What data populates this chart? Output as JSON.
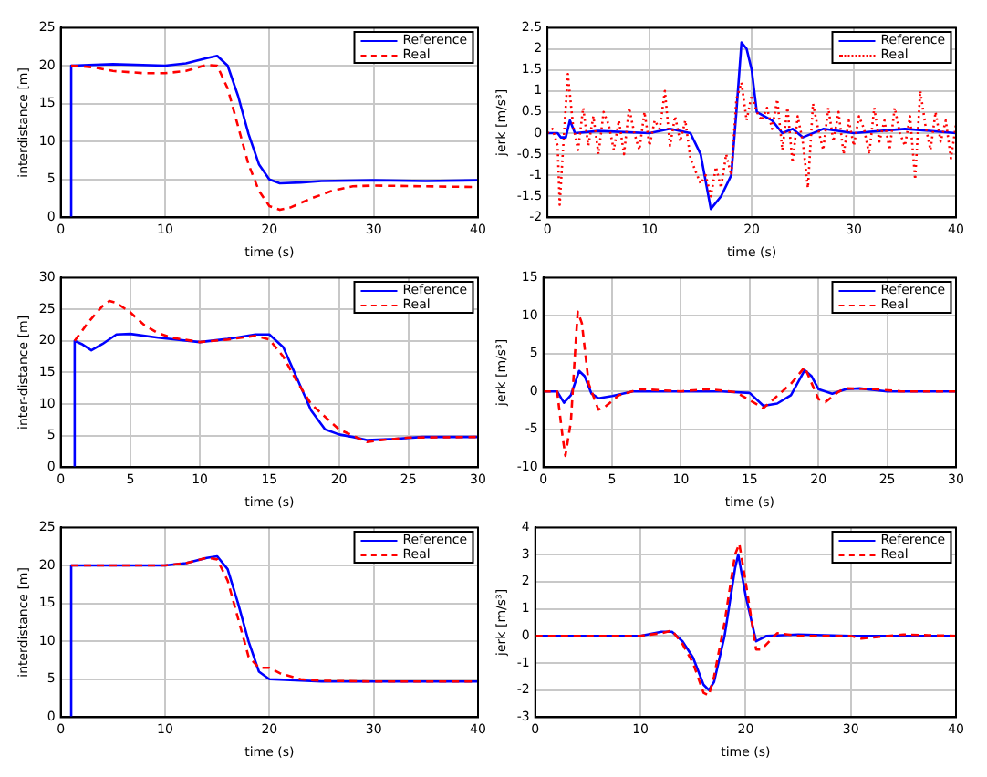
{
  "chart_data": [
    {
      "type": "line",
      "xlabel": "time (s)",
      "ylabel": "interdistance [m]",
      "xlim": [
        0,
        40
      ],
      "xticks": [
        0,
        10,
        20,
        30,
        40
      ],
      "ylim": [
        0,
        25
      ],
      "yticks": [
        0,
        5,
        10,
        15,
        20,
        25
      ],
      "grid": true,
      "legend": "top right",
      "series": [
        {
          "name": "Reference",
          "color": "#0000ff",
          "line_style": "solid",
          "x": [
            1,
            1,
            5,
            10,
            12,
            14,
            15,
            16,
            17,
            18,
            19,
            20,
            21,
            23,
            25,
            30,
            35,
            40
          ],
          "values": [
            0,
            20,
            20.2,
            20,
            20.3,
            21,
            21.3,
            20,
            16,
            11,
            7,
            5,
            4.5,
            4.6,
            4.8,
            4.9,
            4.8,
            4.9
          ]
        },
        {
          "name": "Real",
          "color": "#ff0000",
          "line_style": "dashed",
          "x": [
            1,
            3,
            5,
            8,
            10,
            12,
            14,
            15,
            16,
            17,
            18,
            19,
            20,
            21,
            22,
            24,
            26,
            28,
            30,
            35,
            40
          ],
          "values": [
            20,
            19.8,
            19.3,
            19,
            19,
            19.3,
            20.1,
            20,
            17,
            12,
            7,
            3.5,
            1.5,
            1,
            1.3,
            2.5,
            3.5,
            4.1,
            4.2,
            4.1,
            4
          ]
        }
      ]
    },
    {
      "type": "line",
      "xlabel": "time (s)",
      "ylabel": "jerk [m/s³]",
      "xlim": [
        0,
        40
      ],
      "xticks": [
        0,
        10,
        20,
        30,
        40
      ],
      "ylim": [
        -2,
        2.5
      ],
      "yticks": [
        -2,
        -1.5,
        -1,
        -0.5,
        0,
        0.5,
        1,
        1.5,
        2,
        2.5
      ],
      "grid": true,
      "legend": "top right",
      "series": [
        {
          "name": "Reference",
          "color": "#0000ff",
          "line_style": "solid",
          "x": [
            0,
            1,
            1.3,
            1.8,
            2.2,
            2.7,
            5,
            10,
            12,
            14,
            15,
            16,
            17,
            18,
            18.5,
            19,
            19.5,
            20,
            20.5,
            22,
            23,
            24,
            25,
            27,
            30,
            35,
            40
          ],
          "values": [
            0,
            0,
            -0.1,
            -0.1,
            0.3,
            0,
            0.05,
            0,
            0.1,
            0,
            -0.5,
            -1.8,
            -1.5,
            -1,
            0.5,
            2.15,
            2,
            1.5,
            0.5,
            0.3,
            0,
            0.1,
            -0.1,
            0.1,
            0,
            0.1,
            0
          ]
        },
        {
          "name": "Real",
          "color": "#ff0000",
          "line_style": "dotted",
          "x": [
            0,
            0.5,
            1,
            1.2,
            1.5,
            2,
            2.5,
            3,
            3.5,
            4,
            4.5,
            5,
            5.5,
            6,
            6.5,
            7,
            7.5,
            8,
            8.5,
            9,
            9.5,
            10,
            10.5,
            11,
            11.5,
            12,
            12.5,
            13,
            13.5,
            14,
            14.5,
            15,
            15.5,
            16,
            16.5,
            17,
            17.5,
            18,
            18.5,
            19,
            19.5,
            20,
            20.5,
            21,
            21.5,
            22,
            22.5,
            23,
            23.5,
            24,
            24.5,
            25,
            25.5,
            26,
            26.5,
            27,
            27.5,
            28,
            28.5,
            29,
            29.5,
            30,
            30.5,
            31,
            31.5,
            32,
            32.5,
            33,
            33.5,
            34,
            34.5,
            35,
            35.5,
            36,
            36.5,
            37,
            37.5,
            38,
            38.5,
            39,
            39.5,
            40
          ],
          "values": [
            0,
            0.1,
            -0.3,
            -1.7,
            -0.5,
            1.4,
            0.2,
            -0.4,
            0.6,
            -0.3,
            0.4,
            -0.5,
            0.5,
            0.2,
            -0.4,
            0.3,
            -0.5,
            0.6,
            0,
            -0.4,
            0.5,
            -0.3,
            0.3,
            0.1,
            1,
            -0.3,
            0.4,
            -0.2,
            0.3,
            -0.6,
            -0.9,
            -1.2,
            -1,
            -1.5,
            -0.8,
            -1.3,
            -0.5,
            -1,
            0.8,
            1.2,
            0.3,
            0.9,
            0.5,
            0.3,
            0.6,
            0.1,
            0.8,
            -0.4,
            0.6,
            -0.7,
            0.4,
            -0.2,
            -1.3,
            0.7,
            0.1,
            -0.4,
            0.6,
            -0.2,
            0.5,
            -0.5,
            0.3,
            -0.3,
            0.4,
            0.1,
            -0.5,
            0.6,
            -0.2,
            0.3,
            -0.4,
            0.6,
            0,
            -0.3,
            0.4,
            -1.1,
            1,
            0.2,
            -0.4,
            0.5,
            -0.2,
            0.3,
            -0.6,
            0.2
          ]
        }
      ]
    },
    {
      "type": "line",
      "xlabel": "time (s)",
      "ylabel": "inter-distance [m]",
      "xlim": [
        0,
        30
      ],
      "xticks": [
        0,
        5,
        10,
        15,
        20,
        25,
        30
      ],
      "ylim": [
        0,
        30
      ],
      "yticks": [
        0,
        5,
        10,
        15,
        20,
        25,
        30
      ],
      "grid": true,
      "legend": "top right",
      "series": [
        {
          "name": "Reference",
          "color": "#0000ff",
          "line_style": "solid",
          "x": [
            1,
            1,
            1.5,
            2.2,
            3,
            4,
            5,
            7,
            10,
            12,
            14,
            15,
            16,
            17,
            18,
            19,
            20,
            21,
            22,
            24,
            26,
            30
          ],
          "values": [
            0,
            20,
            19.5,
            18.5,
            19.5,
            21,
            21.1,
            20.5,
            19.8,
            20.3,
            21,
            21,
            19,
            14,
            9,
            6,
            5.2,
            4.8,
            4.3,
            4.5,
            4.8,
            4.8
          ]
        },
        {
          "name": "Real",
          "color": "#ff0000",
          "line_style": "dashed",
          "x": [
            1,
            2,
            3,
            3.5,
            4,
            5,
            6,
            7,
            8,
            10,
            12,
            14,
            15,
            16,
            17,
            18,
            19,
            20,
            21,
            22,
            23,
            25,
            30
          ],
          "values": [
            20,
            23,
            25.5,
            26.3,
            26,
            24.5,
            22.5,
            21.2,
            20.5,
            19.8,
            20.2,
            20.8,
            20.2,
            17.5,
            13.5,
            10,
            8,
            6,
            5,
            4,
            4.3,
            4.7,
            4.8
          ]
        }
      ]
    },
    {
      "type": "line",
      "xlabel": "time (s)",
      "ylabel": "jerk [m/s³]",
      "xlim": [
        0,
        30
      ],
      "xticks": [
        0,
        5,
        10,
        15,
        20,
        25,
        30
      ],
      "ylim": [
        -10,
        15
      ],
      "yticks": [
        -10,
        -5,
        0,
        5,
        10,
        15
      ],
      "grid": true,
      "legend": "top right",
      "series": [
        {
          "name": "Reference",
          "color": "#0000ff",
          "line_style": "solid",
          "x": [
            0,
            1,
            1.5,
            2,
            2.6,
            3,
            3.5,
            4,
            5,
            6.5,
            10,
            13,
            15,
            16,
            17,
            18,
            19,
            19.5,
            20,
            21,
            22,
            23,
            25,
            30
          ],
          "values": [
            0,
            0,
            -1.5,
            -0.5,
            2.7,
            2,
            -0.3,
            -0.9,
            -0.6,
            0,
            0,
            0,
            -0.2,
            -1.9,
            -1.6,
            -0.5,
            2.8,
            2,
            0.3,
            -0.3,
            0.3,
            0.4,
            0,
            0
          ]
        },
        {
          "name": "Real",
          "color": "#ff0000",
          "line_style": "dashed",
          "x": [
            0,
            1,
            1.4,
            1.6,
            2,
            2.3,
            2.5,
            2.8,
            3.3,
            4,
            4.5,
            5.5,
            7,
            10,
            12,
            14,
            16,
            18,
            19,
            20,
            20.5,
            21.5,
            22,
            24,
            26,
            30
          ],
          "values": [
            0,
            0,
            -6,
            -8.5,
            -4,
            5,
            10.5,
            9,
            1,
            -2.4,
            -2,
            -0.5,
            0.3,
            0,
            0.3,
            -0.1,
            -2.2,
            1,
            3.2,
            -1,
            -1.4,
            0,
            0.4,
            0.3,
            0,
            0
          ]
        }
      ]
    },
    {
      "type": "line",
      "xlabel": "time (s)",
      "ylabel": "interdistance [m]",
      "xlim": [
        0,
        40
      ],
      "xticks": [
        0,
        10,
        20,
        30,
        40
      ],
      "ylim": [
        0,
        25
      ],
      "yticks": [
        0,
        5,
        10,
        15,
        20,
        25
      ],
      "grid": true,
      "legend": "top right",
      "series": [
        {
          "name": "Reference",
          "color": "#0000ff",
          "line_style": "solid",
          "x": [
            1,
            1,
            10,
            12,
            14,
            15,
            16,
            17,
            18,
            19,
            20,
            22,
            25,
            30,
            40
          ],
          "values": [
            0,
            20,
            20,
            20.3,
            21,
            21.2,
            19.5,
            15,
            10,
            6,
            5,
            4.9,
            4.7,
            4.7,
            4.7
          ]
        },
        {
          "name": "Real",
          "color": "#ff0000",
          "line_style": "dashed",
          "x": [
            1,
            10,
            12,
            14,
            15,
            16,
            17,
            18,
            19,
            20,
            21,
            23,
            25,
            30,
            40
          ],
          "values": [
            20,
            20,
            20.3,
            21,
            20.8,
            18,
            13,
            8,
            6.5,
            6.5,
            5.8,
            5,
            4.8,
            4.7,
            4.7
          ]
        }
      ]
    },
    {
      "type": "line",
      "xlabel": "time (s)",
      "ylabel": "jerk [m/s³]",
      "xlim": [
        0,
        40
      ],
      "xticks": [
        0,
        10,
        20,
        30,
        40
      ],
      "ylim": [
        -3,
        4
      ],
      "yticks": [
        -3,
        -2,
        -1,
        0,
        1,
        2,
        3,
        4
      ],
      "grid": true,
      "legend": "top right",
      "series": [
        {
          "name": "Reference",
          "color": "#0000ff",
          "line_style": "solid",
          "x": [
            0,
            10,
            12,
            13,
            14,
            15,
            16,
            16.5,
            17,
            18,
            19,
            19.3,
            20,
            21,
            22,
            25,
            30,
            40
          ],
          "values": [
            0,
            0,
            0.15,
            0.15,
            -0.2,
            -0.8,
            -1.8,
            -2,
            -1.7,
            0,
            2.5,
            3,
            1.5,
            -0.2,
            0,
            0.05,
            0,
            0
          ]
        },
        {
          "name": "Real",
          "color": "#ff0000",
          "line_style": "dashed",
          "x": [
            0,
            10,
            12,
            13,
            14,
            15,
            16,
            16.5,
            17,
            18,
            19,
            19.4,
            20,
            21,
            21.5,
            23,
            25,
            30,
            31,
            35,
            40
          ],
          "values": [
            0,
            0,
            0.1,
            0.2,
            -0.3,
            -1,
            -2.1,
            -2.2,
            -1.5,
            0.5,
            3,
            3.4,
            2,
            -0.5,
            -0.5,
            0.1,
            0,
            0,
            -0.1,
            0.05,
            0
          ]
        }
      ]
    }
  ]
}
